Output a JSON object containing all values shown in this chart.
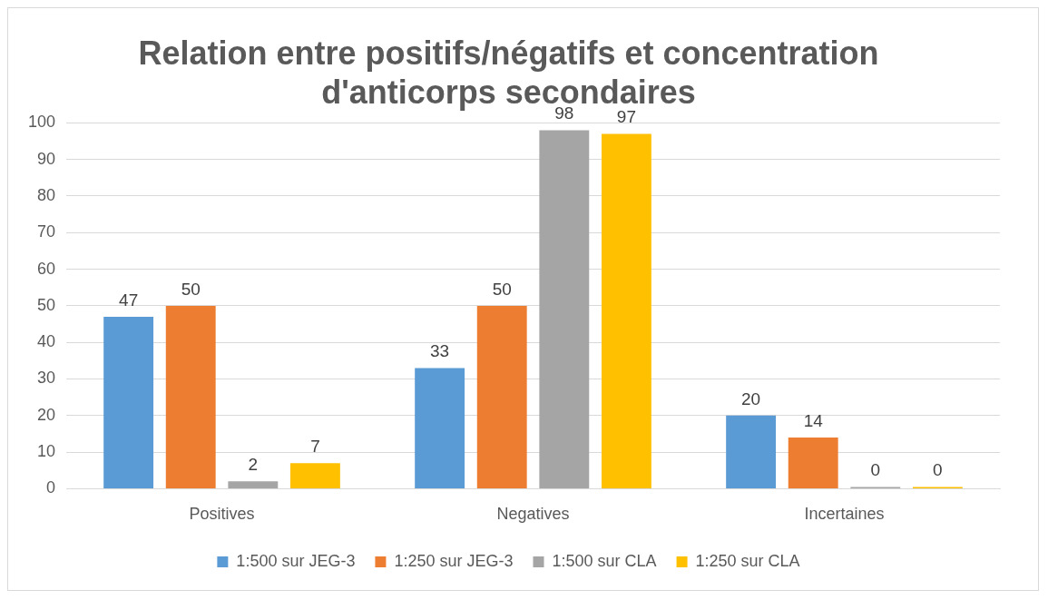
{
  "chart_data": {
    "type": "bar",
    "title": "Relation entre positifs/négatifs et concentration d'anticorps secondaires",
    "categories": [
      "Positives",
      "Negatives",
      "Incertaines"
    ],
    "series": [
      {
        "name": "1:500 sur JEG-3",
        "color": "#5b9bd5",
        "values": [
          47,
          33,
          20
        ]
      },
      {
        "name": "1:250 sur JEG-3",
        "color": "#ed7d31",
        "values": [
          50,
          50,
          14
        ]
      },
      {
        "name": "1:500 sur CLA",
        "color": "#a5a5a5",
        "values": [
          2,
          98,
          0
        ]
      },
      {
        "name": "1:250 sur CLA",
        "color": "#ffc000",
        "values": [
          7,
          97,
          0
        ]
      }
    ],
    "ylim": [
      0,
      100
    ],
    "yticks": [
      0,
      10,
      20,
      30,
      40,
      50,
      60,
      70,
      80,
      90,
      100
    ],
    "grid": "y",
    "legend": "bottom",
    "data_labels": true
  }
}
